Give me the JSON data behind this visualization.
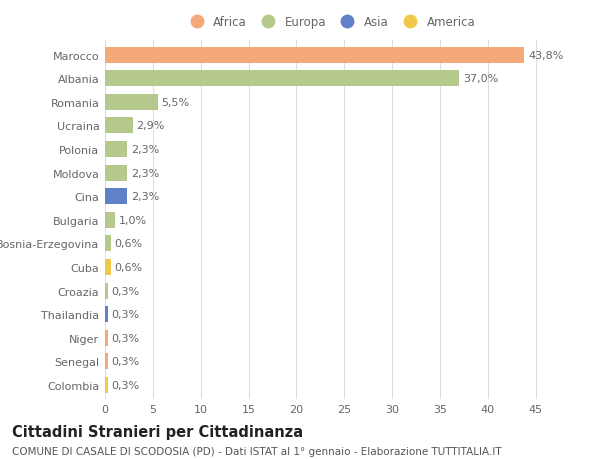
{
  "categories": [
    "Marocco",
    "Albania",
    "Romania",
    "Ucraina",
    "Polonia",
    "Moldova",
    "Cina",
    "Bulgaria",
    "Bosnia-Erzegovina",
    "Cuba",
    "Croazia",
    "Thailandia",
    "Niger",
    "Senegal",
    "Colombia"
  ],
  "values": [
    43.8,
    37.0,
    5.5,
    2.9,
    2.3,
    2.3,
    2.3,
    1.0,
    0.6,
    0.6,
    0.3,
    0.3,
    0.3,
    0.3,
    0.3
  ],
  "labels": [
    "43,8%",
    "37,0%",
    "5,5%",
    "2,9%",
    "2,3%",
    "2,3%",
    "2,3%",
    "1,0%",
    "0,6%",
    "0,6%",
    "0,3%",
    "0,3%",
    "0,3%",
    "0,3%",
    "0,3%"
  ],
  "continents": [
    "Africa",
    "Europa",
    "Europa",
    "Europa",
    "Europa",
    "Europa",
    "Asia",
    "Europa",
    "Europa",
    "America",
    "Europa",
    "Asia",
    "Africa",
    "Africa",
    "America"
  ],
  "continent_colors": {
    "Africa": "#F5A878",
    "Europa": "#B5C98E",
    "Asia": "#6080C8",
    "America": "#F0C84A"
  },
  "legend_order": [
    "Africa",
    "Europa",
    "Asia",
    "America"
  ],
  "title": "Cittadini Stranieri per Cittadinanza",
  "subtitle": "COMUNE DI CASALE DI SCODOSIA (PD) - Dati ISTAT al 1° gennaio - Elaborazione TUTTITALIA.IT",
  "xlim": [
    0,
    47
  ],
  "xticks": [
    0,
    5,
    10,
    15,
    20,
    25,
    30,
    35,
    40,
    45
  ],
  "background_color": "#ffffff",
  "grid_color": "#dddddd",
  "bar_height": 0.68,
  "label_fontsize": 8,
  "tick_fontsize": 8,
  "title_fontsize": 10.5,
  "subtitle_fontsize": 7.5
}
